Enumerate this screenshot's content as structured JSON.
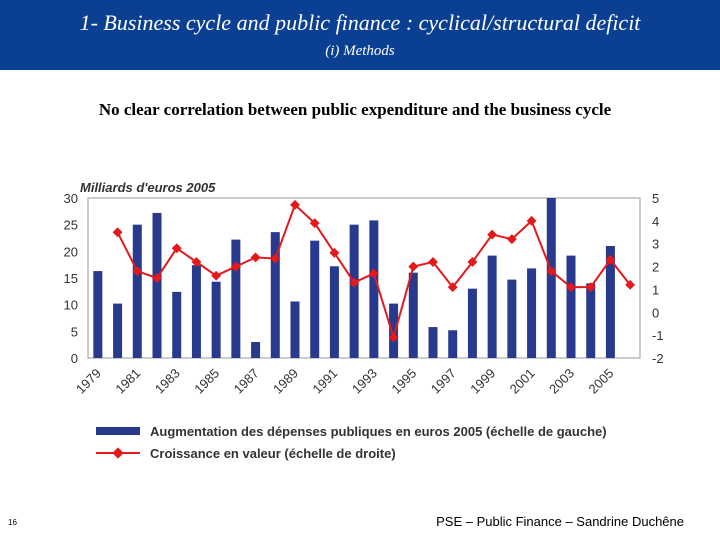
{
  "slide": {
    "title": "1- Business cycle and public finance : cyclical/structural deficit",
    "subtitle": "(i) Methods",
    "headline": "No clear correlation between public expenditure and the business cycle",
    "page_number": "16",
    "footer": "PSE – Public Finance – Sandrine Duchêne"
  },
  "colors": {
    "header_bg": "#0a3f91",
    "bar": "#283a8e",
    "line": "#e3191c"
  },
  "chart_data": {
    "type": "bar",
    "title": "Milliards d'euros 2005",
    "x": [
      1979,
      1980,
      1981,
      1982,
      1983,
      1984,
      1985,
      1986,
      1987,
      1988,
      1989,
      1990,
      1991,
      1992,
      1993,
      1994,
      1995,
      1996,
      1997,
      1998,
      1999,
      2000,
      2001,
      2002,
      2003,
      2004,
      2005,
      2006
    ],
    "x_tick_labels": [
      "1979",
      "1981",
      "1983",
      "1985",
      "1987",
      "1989",
      "1991",
      "1993",
      "1995",
      "1997",
      "1999",
      "2001",
      "2003",
      "2005"
    ],
    "y_left_ticks": [
      0,
      5,
      10,
      15,
      20,
      25,
      30
    ],
    "y_right_ticks": [
      -2,
      -1,
      0,
      1,
      2,
      3,
      4,
      5
    ],
    "ylim_left": [
      0,
      30
    ],
    "ylim_right": [
      -2,
      5
    ],
    "series": [
      {
        "name": "Augmentation des dépenses publiques en euros 2005 (échelle de gauche)",
        "type": "bar",
        "axis": "left",
        "values": [
          16.3,
          10.2,
          25.0,
          27.2,
          12.4,
          17.4,
          14.3,
          22.2,
          3.0,
          23.6,
          10.6,
          22.0,
          17.2,
          25.0,
          25.8,
          10.2,
          16.0,
          5.8,
          5.2,
          13.0,
          19.2,
          14.7,
          16.8,
          30.0,
          19.2,
          14.0,
          21.0,
          null
        ]
      },
      {
        "name": "Croissance en valeur (échelle de droite)",
        "type": "line",
        "axis": "right",
        "values": [
          null,
          3.5,
          1.8,
          1.5,
          2.8,
          2.2,
          1.6,
          2.0,
          2.4,
          2.35,
          4.7,
          3.9,
          2.6,
          1.3,
          1.7,
          -1.1,
          2.0,
          2.2,
          1.1,
          2.2,
          3.4,
          3.2,
          4.0,
          1.8,
          1.1,
          1.1,
          2.3,
          1.2
        ]
      }
    ]
  }
}
